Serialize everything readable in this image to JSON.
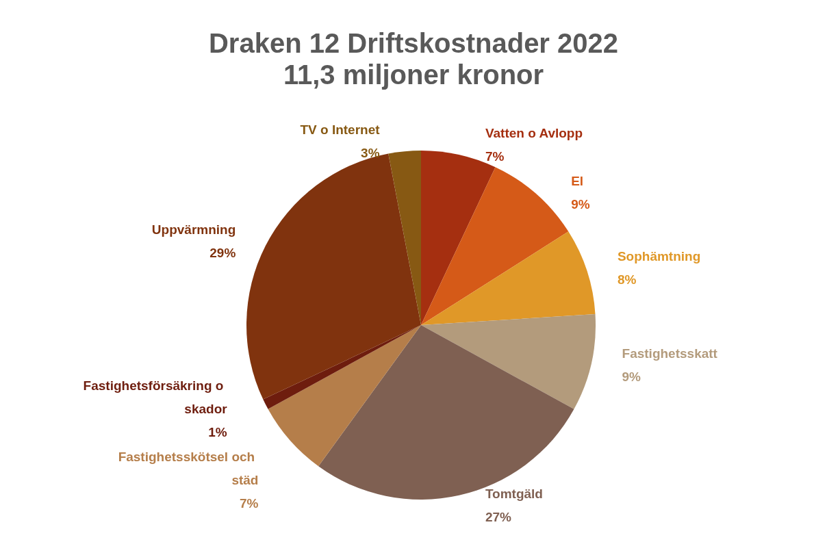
{
  "chart_data": {
    "type": "pie",
    "title": "Draken 12 Driftskostnader 2022",
    "subtitle": "11,3 miljoner kronor",
    "categories": [
      "Vatten o Avlopp",
      "El",
      "Sophämtning",
      "Fastighetsskatt",
      "Tomtgäld",
      "Fastighetsskötsel och städ",
      "Fastighetsförsäkring o skador",
      "Uppvärmning",
      "TV o Internet"
    ],
    "values": [
      7,
      9,
      8,
      9,
      27,
      7,
      1,
      29,
      3
    ],
    "value_labels": [
      "7%",
      "9%",
      "8%",
      "9%",
      "27%",
      "7%",
      "1%",
      "29%",
      "3%"
    ],
    "colors": [
      "#a52f10",
      "#d55a18",
      "#e09828",
      "#b39b7c",
      "#7f6052",
      "#b57e4a",
      "#6e1d0e",
      "#80330e",
      "#875913"
    ],
    "legend": false
  }
}
